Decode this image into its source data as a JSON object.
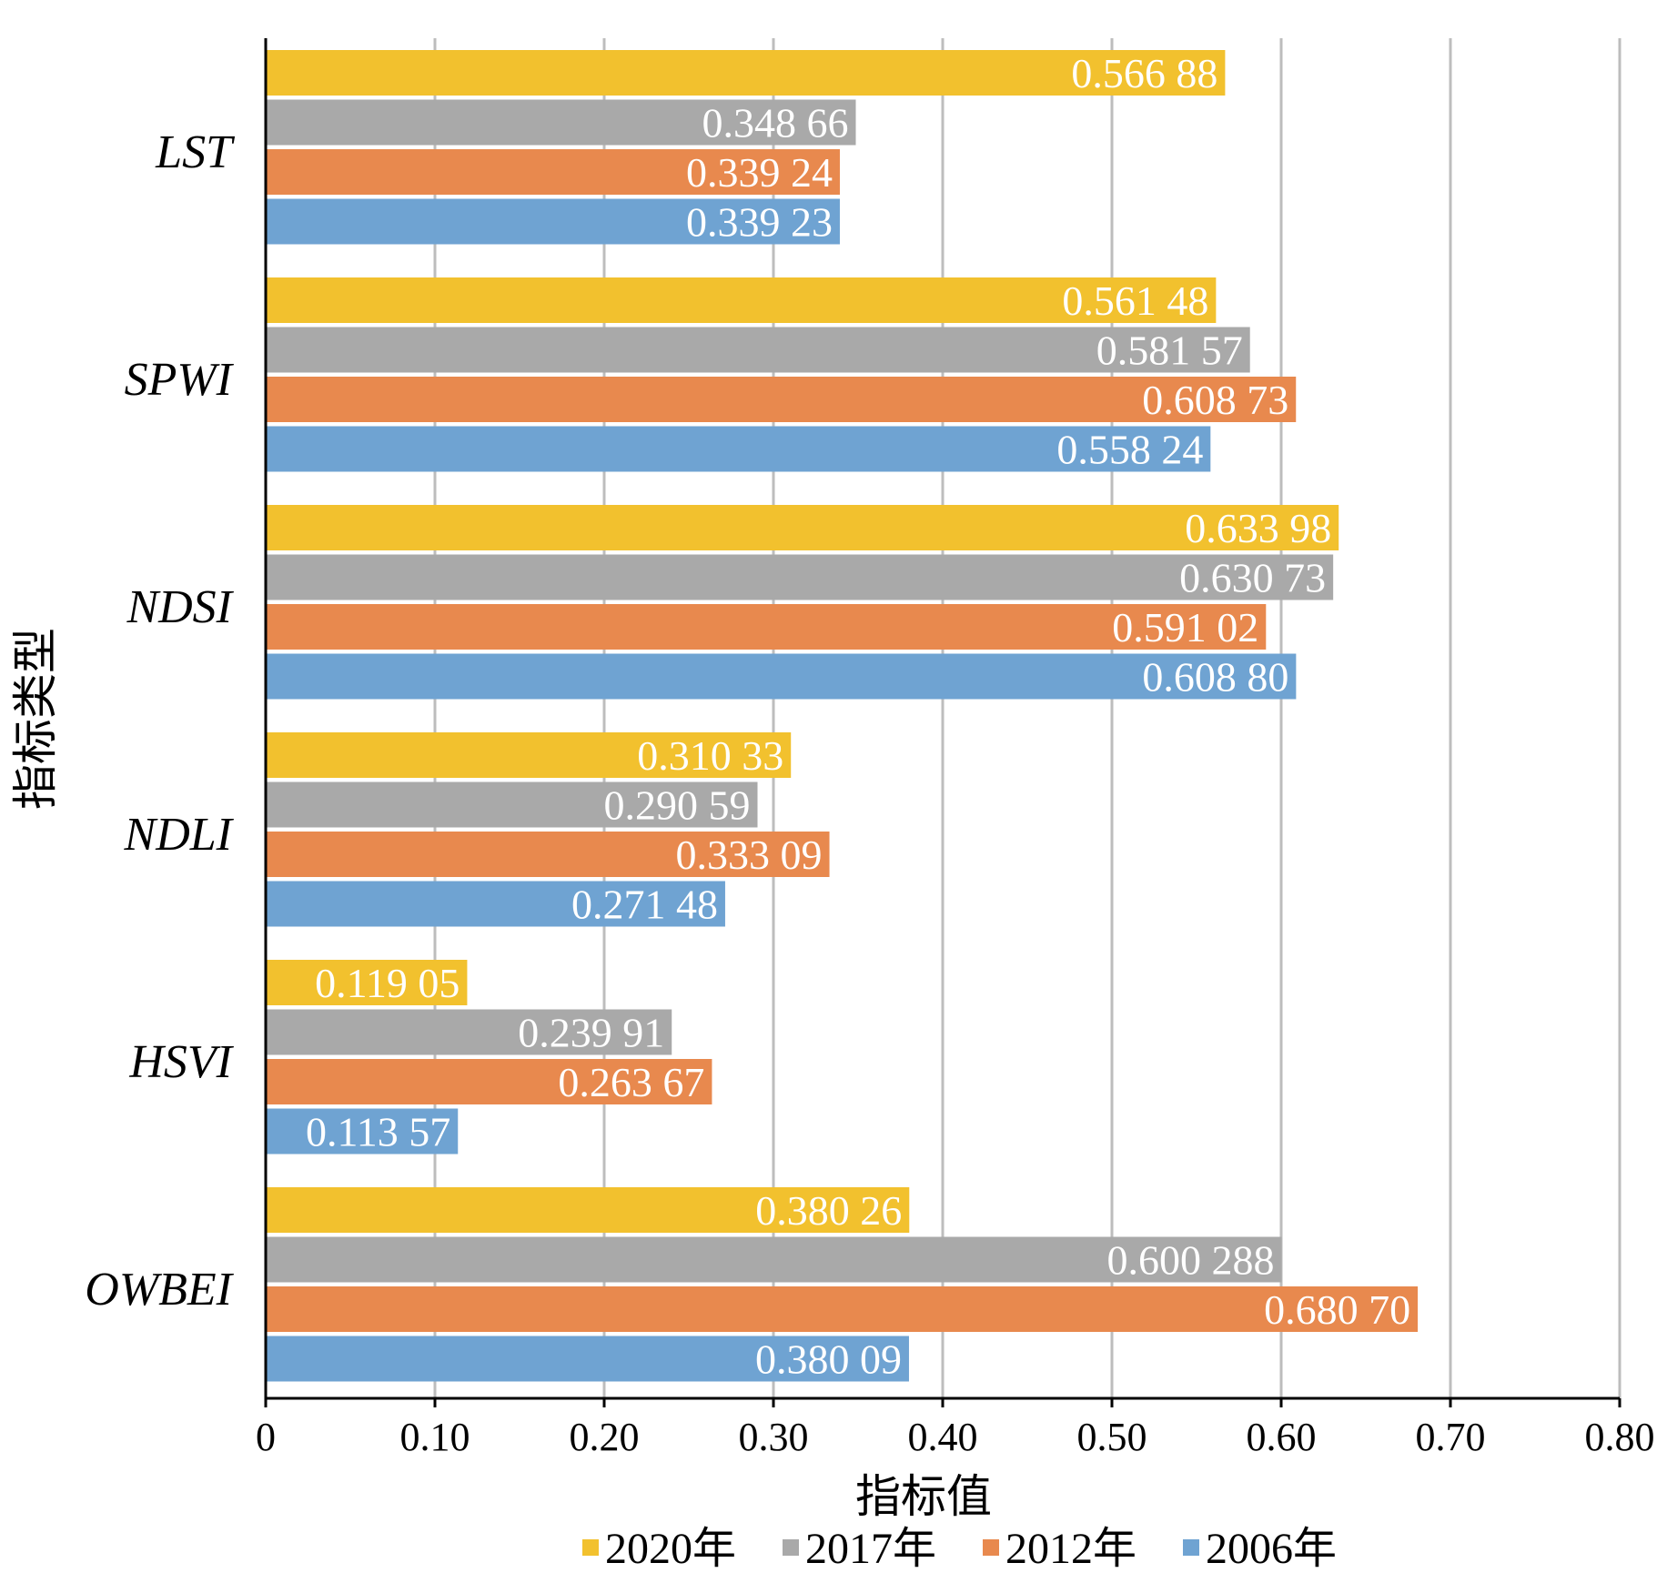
{
  "chart_data": {
    "type": "bar",
    "orientation": "horizontal",
    "categories": [
      "LST",
      "SPWI",
      "NDSI",
      "NDLI",
      "HSVI",
      "OWBEI"
    ],
    "series": [
      {
        "name": "2020年",
        "color": "#f2c12e",
        "values": [
          0.56688,
          0.56148,
          0.63398,
          0.31033,
          0.11905,
          0.38026
        ],
        "labels": [
          "0.566 88",
          "0.561 48",
          "0.633 98",
          "0.310 33",
          "0.119 05",
          "0.380 26"
        ]
      },
      {
        "name": "2017年",
        "color": "#a9a9a9",
        "values": [
          0.34866,
          0.58157,
          0.63073,
          0.29059,
          0.23991,
          0.600288
        ],
        "labels": [
          "0.348 66",
          "0.581 57",
          "0.630 73",
          "0.290 59",
          "0.239 91",
          "0.600 288"
        ]
      },
      {
        "name": "2012年",
        "color": "#e8894e",
        "values": [
          0.33924,
          0.60873,
          0.59102,
          0.33309,
          0.26367,
          0.6807
        ],
        "labels": [
          "0.339 24",
          "0.608 73",
          "0.591 02",
          "0.333 09",
          "0.263 67",
          "0.680 70"
        ]
      },
      {
        "name": "2006年",
        "color": "#6fa3d2",
        "values": [
          0.33923,
          0.55824,
          0.6088,
          0.27148,
          0.11357,
          0.38009
        ],
        "labels": [
          "0.339 23",
          "0.558 24",
          "0.608 80",
          "0.271 48",
          "0.113 57",
          "0.380 09"
        ]
      }
    ],
    "xlim": [
      0,
      0.8
    ],
    "xticks": [
      "0",
      "0.10",
      "0.20",
      "0.30",
      "0.40",
      "0.50",
      "0.60",
      "0.70",
      "0.80"
    ],
    "xlabel": "指标值",
    "ylabel": "指标类型",
    "grid": "vertical",
    "legend_position": "bottom"
  }
}
